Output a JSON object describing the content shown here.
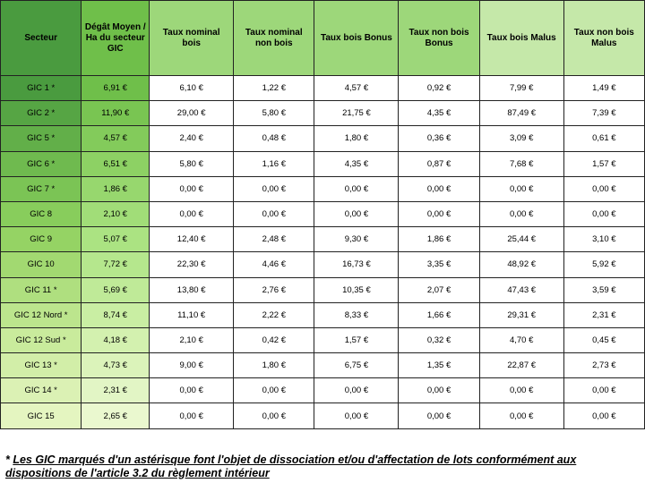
{
  "columns": [
    {
      "label": "Secteur",
      "header_bg": "#4a9b3f",
      "width": 12.5
    },
    {
      "label": "Dégât Moyen / Ha du secteur GIC",
      "header_bg": "#6fbf4a",
      "width": 10.5
    },
    {
      "label": "Taux nominal bois",
      "header_bg": "#9dd77a",
      "width": 13
    },
    {
      "label": "Taux nominal non bois",
      "header_bg": "#9dd77a",
      "width": 12.5
    },
    {
      "label": "Taux bois Bonus",
      "header_bg": "#9dd77a",
      "width": 13
    },
    {
      "label": "Taux non bois Bonus",
      "header_bg": "#9dd77a",
      "width": 12.5
    },
    {
      "label": "Taux bois Malus",
      "header_bg": "#c5e8a9",
      "width": 13
    },
    {
      "label": "Taux non bois Malus",
      "header_bg": "#c5e8a9",
      "width": 12.5
    }
  ],
  "col0_bgs": [
    "#4a9b3f",
    "#56a544",
    "#62af49",
    "#6fba4f",
    "#7bc455",
    "#88cd5c",
    "#95d364",
    "#a2d971",
    "#afdf7f",
    "#bce58d",
    "#c9eb9c",
    "#d2eea8",
    "#dbf1b4",
    "#e4f5c0",
    "#edf8cc"
  ],
  "col1_bgs": [
    "#6fbf4a",
    "#79c552",
    "#83cb5b",
    "#8dd164",
    "#97d76e",
    "#a1dd78",
    "#abe382",
    "#b5e78d",
    "#bfea98",
    "#c9eea3",
    "#d3f1af",
    "#dbf3ba",
    "#e2f5c5",
    "#eaf8cf",
    "#f1fada"
  ],
  "rows": [
    [
      "GIC 1 *",
      "6,91 €",
      "6,10 €",
      "1,22 €",
      "4,57 €",
      "0,92 €",
      "7,99 €",
      "1,49 €"
    ],
    [
      "GIC 2 *",
      "11,90 €",
      "29,00 €",
      "5,80 €",
      "21,75 €",
      "4,35 €",
      "87,49 €",
      "7,39 €"
    ],
    [
      "GIC 5 *",
      "4,57 €",
      "2,40 €",
      "0,48 €",
      "1,80 €",
      "0,36 €",
      "3,09 €",
      "0,61 €"
    ],
    [
      "GIC 6 *",
      "6,51 €",
      "5,80 €",
      "1,16 €",
      "4,35 €",
      "0,87 €",
      "7,68 €",
      "1,57 €"
    ],
    [
      "GIC 7 *",
      "1,86 €",
      "0,00 €",
      "0,00 €",
      "0,00 €",
      "0,00 €",
      "0,00 €",
      "0,00 €"
    ],
    [
      "GIC 8",
      "2,10 €",
      "0,00 €",
      "0,00 €",
      "0,00 €",
      "0,00 €",
      "0,00 €",
      "0,00 €"
    ],
    [
      "GIC 9",
      "5,07 €",
      "12,40 €",
      "2,48 €",
      "9,30 €",
      "1,86 €",
      "25,44 €",
      "3,10 €"
    ],
    [
      "GIC 10",
      "7,72 €",
      "22,30 €",
      "4,46 €",
      "16,73 €",
      "3,35 €",
      "48,92 €",
      "5,92 €"
    ],
    [
      "GIC 11 *",
      "5,69 €",
      "13,80 €",
      "2,76 €",
      "10,35 €",
      "2,07 €",
      "47,43 €",
      "3,59 €"
    ],
    [
      "GIC 12 Nord *",
      "8,74 €",
      "11,10 €",
      "2,22 €",
      "8,33 €",
      "1,66 €",
      "29,31 €",
      "2,31 €"
    ],
    [
      "GIC 12 Sud *",
      "4,18 €",
      "2,10 €",
      "0,42 €",
      "1,57 €",
      "0,32 €",
      "4,70 €",
      "0,45 €"
    ],
    [
      "GIC 13 *",
      "4,73 €",
      "9,00 €",
      "1,80 €",
      "6,75 €",
      "1,35 €",
      "22,87 €",
      "2,73 €"
    ],
    [
      "GIC 14 *",
      "2,31 €",
      "0,00 €",
      "0,00 €",
      "0,00 €",
      "0,00 €",
      "0,00 €",
      "0,00 €"
    ],
    [
      "GIC 15",
      "2,65 €",
      "0,00 €",
      "0,00 €",
      "0,00 €",
      "0,00 €",
      "0,00 €",
      "0,00 €"
    ]
  ],
  "footnote": {
    "prefix": "* ",
    "underlined": "Les GIC marqués d'un astérisque font l'objet de dissociation et/ou d'affectation de lots conformément aux dispositions de l'article 3.2 du règlement intérieur"
  }
}
